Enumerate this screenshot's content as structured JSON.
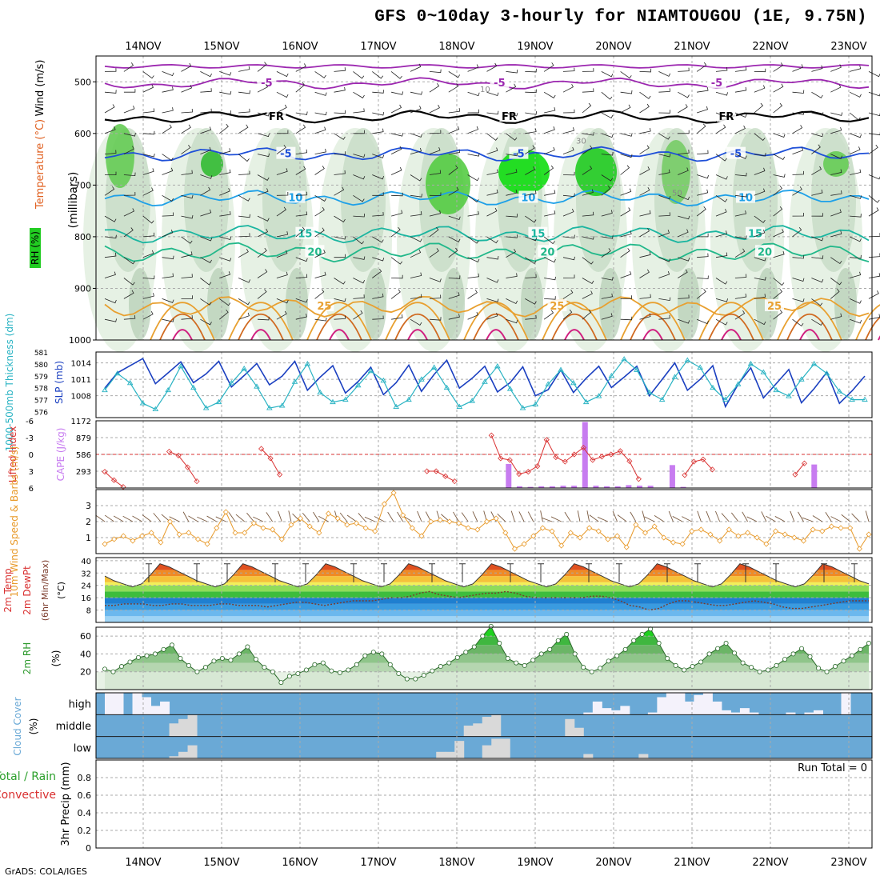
{
  "title": "GFS 0~10day 3-hourly for NIAMTOUGOU (1E, 9.75N)",
  "credit": "GrADS: COLA/IGES",
  "colors": {
    "rh": "#2ca02c",
    "wind": "#000000",
    "temp_label": "#e06020",
    "slp": "#1a3fc0",
    "thickness": "#29b3c3",
    "cape": "#c77cf0",
    "lifted": "#d93030",
    "wind10": "#e89a2a",
    "cloud": "#6aa9d6",
    "rh2m": "#2e9a2e",
    "precip_total": "#2ca02c",
    "precip_conv": "#d93030"
  },
  "chart_data": [
    {
      "type": "contour",
      "panel": "cross-section",
      "x_labels": [
        "14NOV",
        "15NOV",
        "16NOV",
        "17NOV",
        "18NOV",
        "19NOV",
        "20NOV",
        "21NOV",
        "22NOV",
        "23NOV"
      ],
      "ylabel": "(millibars)",
      "left_labels": [
        "Wind (m/s)",
        "Temperature (°C)",
        "RH (%)"
      ],
      "y_ticks": [
        500,
        600,
        700,
        800,
        900,
        1000
      ],
      "ylim": [
        450,
        1000
      ],
      "isotherm_labels": [
        {
          "label": "-5",
          "level": 503
        },
        {
          "label": "FR",
          "level": 568
        },
        {
          "label": "-5",
          "level": 640
        },
        {
          "label": "10",
          "level": 725
        },
        {
          "label": "15",
          "level": 795
        },
        {
          "label": "20",
          "level": 830
        },
        {
          "label": "25",
          "level": 935
        }
      ],
      "rh_labels": [
        "10",
        "30",
        "50"
      ]
    },
    {
      "type": "line",
      "panel": "slp-thickness",
      "ylabel_left": "1000-500mb Thickness (dm)",
      "ylabel_right": "SLP (mb)",
      "thickness_ticks": [
        576,
        577,
        578,
        579,
        580,
        581
      ],
      "slp_ticks": [
        1008,
        1011,
        1014
      ],
      "slp_range": [
        1004,
        1016
      ],
      "thickness_range": [
        575.5,
        581
      ],
      "series": [
        {
          "name": "SLP (mb)",
          "values": [
            1009.4,
            1012.2,
            1013.5,
            1014.8,
            1010.2,
            1012.2,
            1014.2,
            1010.4,
            1012.0,
            1014.3,
            1009.6,
            1011.7,
            1013.9,
            1010.0,
            1011.6,
            1014.3,
            1009.0,
            1011.4,
            1013.5,
            1008.5,
            1010.6,
            1013.2,
            1008.2,
            1010.4,
            1013.6,
            1008.8,
            1011.9,
            1014.5,
            1009.4,
            1011.2,
            1013.4,
            1008.7,
            1010.4,
            1013.3,
            1008.0,
            1009.1,
            1012.7,
            1008.6,
            1011.2,
            1013.4,
            1009.5,
            1011.4,
            1013.4,
            1008.0,
            1011.0,
            1014.0,
            1009.0,
            1011.0,
            1013.5,
            1006.0,
            1010.1,
            1013.1,
            1007.6,
            1010.2,
            1012.8,
            1006.7,
            1009.3,
            1012.3,
            1006.6,
            1008.9,
            1011.6
          ]
        },
        {
          "name": "Thickness (dm)",
          "values": [
            577.8,
            579.2,
            578.4,
            576.7,
            576.2,
            577.8,
            579.8,
            578.0,
            576.3,
            576.8,
            578.4,
            579.6,
            578.1,
            576.3,
            576.5,
            578.5,
            580.0,
            577.6,
            576.8,
            577.0,
            578.2,
            579.4,
            578.6,
            576.4,
            577.0,
            578.7,
            579.7,
            578.0,
            576.4,
            576.9,
            578.5,
            579.8,
            577.9,
            576.3,
            576.6,
            578.3,
            579.5,
            578.4,
            576.8,
            577.3,
            579.0,
            580.4,
            579.5,
            577.6,
            577.0,
            578.9,
            580.3,
            579.7,
            578.0,
            577.0,
            578.3,
            580.0,
            579.3,
            577.8,
            577.3,
            578.7,
            580.0,
            579.2,
            577.7,
            577.0,
            577.0
          ]
        }
      ]
    },
    {
      "type": "bar",
      "panel": "cape-lifted-index",
      "ylabel_left": "Lifted Index",
      "ylabel_right": "CAPE (J/kg)",
      "li_ticks": [
        6,
        3,
        0,
        -3,
        -6
      ],
      "cape_ticks": [
        293,
        586,
        879,
        1172
      ],
      "li_range": [
        -6,
        6
      ],
      "cape_range": [
        0,
        1172
      ],
      "cape": {
        "values": [
          0,
          0,
          0,
          0,
          0,
          0,
          0,
          0,
          0,
          0,
          0,
          0,
          0,
          0,
          0,
          0,
          0,
          0,
          0,
          0,
          0,
          0,
          0,
          0,
          0,
          0,
          0,
          0,
          0,
          0,
          0,
          0,
          0,
          0,
          0,
          0,
          0,
          420,
          30,
          20,
          30,
          30,
          40,
          40,
          1150,
          40,
          30,
          30,
          50,
          40,
          40,
          0,
          400,
          20,
          0,
          0,
          0,
          0,
          0,
          0,
          0,
          0,
          0,
          0,
          0,
          410,
          0,
          0,
          0,
          0,
          0
        ]
      },
      "lifted": {
        "values": [
          3.1,
          4.6,
          5.8,
          null,
          null,
          null,
          null,
          -0.5,
          0.2,
          2.3,
          4.8,
          null,
          null,
          null,
          null,
          null,
          null,
          -1.0,
          0.7,
          3.6,
          null,
          null,
          null,
          null,
          null,
          null,
          null,
          null,
          null,
          null,
          null,
          null,
          null,
          null,
          null,
          3.0,
          3.0,
          3.9,
          4.8,
          null,
          null,
          null,
          -3.4,
          0.7,
          1.0,
          3.5,
          3.1,
          2.1,
          -2.6,
          0.5,
          1.3,
          0.0,
          -1.2,
          1.0,
          0.4,
          0.0,
          -0.6,
          1.2,
          4.4,
          null,
          null,
          null,
          null,
          3.7,
          1.3,
          0.9,
          2.7,
          null,
          null,
          null,
          null,
          null,
          null,
          null,
          null,
          3.6,
          1.6,
          null,
          null,
          null,
          null,
          null,
          null,
          null
        ]
      }
    },
    {
      "type": "line",
      "panel": "wind10m",
      "ylabel": "10m Wind Speed & Barbs (m/s)",
      "y_ticks": [
        1,
        2,
        3
      ],
      "ylim": [
        0,
        4
      ],
      "series": [
        {
          "name": "10m wind speed",
          "values": [
            0.6,
            0.9,
            1.1,
            0.8,
            1.1,
            1.3,
            0.7,
            2.0,
            1.2,
            1.3,
            0.9,
            0.6,
            1.6,
            2.6,
            1.3,
            1.3,
            1.9,
            1.6,
            1.5,
            0.9,
            1.8,
            2.2,
            1.7,
            1.3,
            2.5,
            2.2,
            1.8,
            1.9,
            1.6,
            1.4,
            3.1,
            3.8,
            2.4,
            1.6,
            1.1,
            2.0,
            2.1,
            2.0,
            1.9,
            1.6,
            1.5,
            2.0,
            2.2,
            1.3,
            0.3,
            0.6,
            1.1,
            1.6,
            1.4,
            0.5,
            1.3,
            1.0,
            1.6,
            1.4,
            0.9,
            1.1,
            0.4,
            1.8,
            1.3,
            1.7,
            1.0,
            0.7,
            0.6,
            1.4,
            1.5,
            1.2,
            0.8,
            1.5,
            1.1,
            1.3,
            1.0,
            0.6,
            1.4,
            1.2,
            1.0,
            0.8,
            1.5,
            1.4,
            1.7,
            1.6,
            1.6,
            0.3,
            1.2
          ]
        }
      ]
    },
    {
      "type": "area",
      "panel": "temp-dewpoint",
      "ylabel": "2m Temp 2m DewPt (6hr Min/Max) (°C)",
      "y_ticks": [
        8,
        16,
        24,
        32,
        40
      ],
      "ylim": [
        0,
        42
      ],
      "series": [
        {
          "name": "2m Temp",
          "values": [
            30,
            27,
            25,
            23,
            25,
            31,
            38,
            36,
            33,
            30,
            27,
            25,
            23,
            25,
            31,
            38,
            36,
            33,
            30,
            27,
            25,
            23,
            25,
            31,
            38,
            36,
            33,
            30,
            27,
            25,
            23,
            25,
            31,
            38,
            36,
            33,
            30,
            27,
            25,
            23,
            25,
            31,
            38,
            36,
            33,
            30,
            27,
            25,
            23,
            25,
            31,
            38,
            36,
            33,
            30,
            27,
            25,
            23,
            25,
            31,
            38,
            36,
            33,
            30,
            27,
            25,
            23,
            25,
            31,
            38,
            36,
            33,
            30,
            27,
            25,
            23,
            25,
            31,
            38,
            36,
            33,
            30,
            27,
            25
          ]
        },
        {
          "name": "2m DewPt",
          "values": [
            11,
            11,
            12,
            12,
            12,
            11,
            11,
            12,
            12,
            11,
            11,
            11,
            12,
            12,
            11,
            11,
            11,
            10,
            11,
            12,
            13,
            13,
            12,
            11,
            12,
            13,
            14,
            14,
            14,
            15,
            16,
            16,
            17,
            19,
            20,
            18,
            17,
            16,
            17,
            18,
            19,
            19,
            20,
            19,
            17,
            16,
            16,
            16,
            16,
            16,
            16,
            17,
            17,
            16,
            14,
            11,
            10,
            8,
            9,
            12,
            14,
            14,
            13,
            12,
            11,
            11,
            12,
            13,
            14,
            13,
            12,
            10,
            9,
            9,
            10,
            11,
            12,
            13,
            14,
            14,
            14
          ]
        }
      ]
    },
    {
      "type": "area",
      "panel": "rh2m",
      "ylabel": "2m RH (%)",
      "y_ticks": [
        20,
        40,
        60
      ],
      "ylim": [
        0,
        70
      ],
      "series": [
        {
          "name": "2m RH",
          "values": [
            23,
            20,
            26,
            31,
            36,
            38,
            40,
            45,
            50,
            35,
            27,
            20,
            25,
            32,
            35,
            33,
            40,
            48,
            34,
            25,
            20,
            8,
            15,
            18,
            22,
            28,
            30,
            21,
            19,
            22,
            28,
            38,
            42,
            40,
            28,
            18,
            12,
            12,
            16,
            21,
            26,
            30,
            36,
            42,
            48,
            60,
            71,
            52,
            35,
            30,
            27,
            33,
            40,
            45,
            55,
            62,
            40,
            25,
            20,
            24,
            32,
            38,
            45,
            55,
            62,
            68,
            52,
            35,
            27,
            22,
            26,
            31,
            40,
            46,
            52,
            41,
            30,
            25,
            20,
            22,
            27,
            34,
            40,
            46,
            37,
            24,
            20,
            26,
            32,
            38,
            45,
            52
          ]
        }
      ]
    },
    {
      "type": "bar",
      "panel": "cloud-cover",
      "ylabel": "Cloud Cover (%)",
      "levels": [
        "high",
        "middle",
        "low"
      ],
      "series": [
        {
          "name": "high",
          "values": [
            100,
            100,
            0,
            100,
            80,
            40,
            60,
            0,
            0,
            0,
            0,
            0,
            0,
            0,
            0,
            0,
            0,
            0,
            0,
            0,
            0,
            0,
            0,
            0,
            0,
            0,
            0,
            0,
            0,
            0,
            0,
            0,
            0,
            0,
            0,
            0,
            0,
            0,
            0,
            0,
            0,
            0,
            0,
            0,
            0,
            0,
            0,
            0,
            0,
            0,
            0,
            0,
            10,
            60,
            30,
            20,
            40,
            0,
            0,
            10,
            80,
            100,
            100,
            60,
            90,
            100,
            60,
            20,
            10,
            30,
            10,
            0,
            0,
            0,
            10,
            0,
            10,
            20,
            0,
            0,
            100,
            0,
            0
          ]
        },
        {
          "name": "middle",
          "values": [
            0,
            0,
            0,
            0,
            0,
            0,
            0,
            60,
            80,
            100,
            0,
            0,
            0,
            0,
            0,
            0,
            0,
            0,
            0,
            0,
            0,
            0,
            0,
            0,
            0,
            0,
            0,
            0,
            0,
            0,
            0,
            0,
            0,
            0,
            0,
            0,
            0,
            0,
            0,
            50,
            60,
            90,
            100,
            0,
            0,
            0,
            0,
            0,
            0,
            0,
            80,
            40,
            0,
            0,
            0,
            0,
            0,
            0,
            0,
            0,
            0,
            0,
            0,
            0,
            0,
            0,
            0,
            0,
            0,
            0,
            0,
            0,
            0,
            0,
            0,
            0,
            0,
            0,
            0,
            0,
            0,
            0,
            0
          ]
        },
        {
          "name": "low",
          "values": [
            0,
            0,
            0,
            0,
            0,
            0,
            0,
            10,
            30,
            60,
            0,
            0,
            0,
            0,
            0,
            0,
            0,
            0,
            0,
            0,
            0,
            0,
            0,
            0,
            0,
            0,
            0,
            0,
            0,
            0,
            0,
            0,
            0,
            0,
            0,
            0,
            30,
            30,
            80,
            0,
            0,
            60,
            90,
            90,
            0,
            0,
            0,
            0,
            0,
            0,
            0,
            0,
            20,
            0,
            0,
            0,
            0,
            0,
            20,
            0,
            0,
            0,
            0,
            0,
            0,
            0,
            0,
            0,
            0,
            0,
            0,
            0,
            0,
            0,
            0,
            0,
            0,
            0,
            0,
            0,
            0,
            0,
            0
          ]
        }
      ]
    },
    {
      "type": "bar",
      "panel": "precip",
      "ylabel": "3hr Precip (mm)",
      "legend": [
        "Total / Rain",
        "Convective"
      ],
      "run_total_label": "Run Total = 0",
      "y_ticks": [
        0,
        0.2,
        0.4,
        0.6,
        0.8
      ],
      "ylim": [
        0,
        1.0
      ],
      "values": []
    }
  ]
}
